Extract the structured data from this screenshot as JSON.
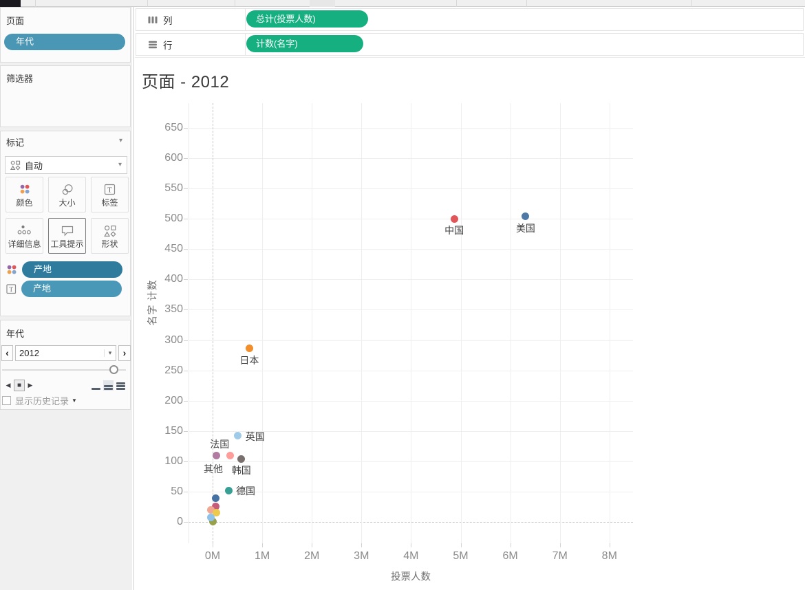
{
  "icons": {
    "caret_down": "▾",
    "history_caret": "▼",
    "prev": "‹",
    "next": "›",
    "back": "◀",
    "stop": "■",
    "play": "▶"
  },
  "colors": {
    "pill_page": "#4a96b5",
    "pill_marks_dark": "#2e7b9e",
    "pill_marks_light": "#4a98b8",
    "pill_measure_green": "#16b080",
    "icon_dots": [
      "#9467a8",
      "#e05759",
      "#eda04f",
      "#85a3cf"
    ]
  },
  "left_panel": {
    "pages_title": "页面",
    "pages_pill": "年代",
    "filters_title": "筛选器",
    "marks_title": "标记",
    "mark_type": "自动",
    "marks_buttons": [
      {
        "label": "颜色",
        "icon": "color-icon",
        "selected": false
      },
      {
        "label": "大小",
        "icon": "size-icon",
        "selected": false
      },
      {
        "label": "标签",
        "icon": "label-icon",
        "selected": false
      },
      {
        "label": "详细信息",
        "icon": "detail-icon",
        "selected": false
      },
      {
        "label": "工具提示",
        "icon": "tooltip-icon",
        "selected": true
      },
      {
        "label": "形状",
        "icon": "shape-icon",
        "selected": false
      }
    ],
    "marks_pills": [
      {
        "label": "产地",
        "icon": "color-icon"
      },
      {
        "label": "产地",
        "icon": "text-icon"
      }
    ],
    "page_control_title": "年代",
    "page_value": "2012",
    "history_label": "显示历史记录"
  },
  "shelves": {
    "columns_label": "列",
    "columns_pill": "总计(投票人数)",
    "rows_label": "行",
    "rows_pill": "计数(名字)"
  },
  "chart_data": {
    "type": "scatter",
    "title": "页面 - 2012",
    "xlabel": "投票人数",
    "ylabel": "名字 计数",
    "x_tick_labels": [
      "0M",
      "1M",
      "2M",
      "3M",
      "4M",
      "5M",
      "6M",
      "7M",
      "8M"
    ],
    "x_tick_values_m": [
      0,
      1,
      2,
      3,
      4,
      5,
      6,
      7,
      8
    ],
    "y_ticks": [
      0,
      50,
      100,
      150,
      200,
      250,
      300,
      350,
      400,
      450,
      500,
      550,
      600,
      650
    ],
    "xlim_m": [
      -0.5,
      8.5
    ],
    "ylim": [
      -35,
      690
    ],
    "grid": true,
    "points": [
      {
        "label": "中国",
        "x_m": 4.87,
        "y": 500,
        "color": "#e15759",
        "label_pos": "below"
      },
      {
        "label": "美国",
        "x_m": 6.31,
        "y": 504,
        "color": "#4e79a7",
        "label_pos": "below"
      },
      {
        "label": "日本",
        "x_m": 0.74,
        "y": 286,
        "color": "#f28e2b",
        "label_pos": "below"
      },
      {
        "label": "英国",
        "x_m": 0.51,
        "y": 142,
        "color": "#a0cbe8",
        "label_pos": "right"
      },
      {
        "label": "法国",
        "x_m": 0.35,
        "y": 109,
        "color": "#ff9d9a",
        "label_pos": "above-left"
      },
      {
        "label": "其他",
        "x_m": 0.07,
        "y": 109,
        "color": "#b07aa1",
        "label_pos": "below-left"
      },
      {
        "label": "韩国",
        "x_m": 0.58,
        "y": 104,
        "color": "#79706e",
        "label_pos": "below"
      },
      {
        "label": "德国",
        "x_m": 0.32,
        "y": 52,
        "color": "#379f94",
        "label_pos": "right"
      },
      {
        "label": "",
        "x_m": 0.06,
        "y": 39,
        "color": "#4672a3",
        "label_pos": "none"
      },
      {
        "label": "",
        "x_m": 0.06,
        "y": 26,
        "color": "#c75b7a",
        "label_pos": "none"
      },
      {
        "label": "",
        "x_m": -0.03,
        "y": 20,
        "color": "#f0a893",
        "label_pos": "none"
      },
      {
        "label": "",
        "x_m": 0.08,
        "y": 15,
        "color": "#edc94e",
        "label_pos": "none"
      },
      {
        "label": "",
        "x_m": 0.0,
        "y": 1,
        "color": "#97a14a",
        "label_pos": "none"
      },
      {
        "label": "",
        "x_m": -0.03,
        "y": 7,
        "color": "#8fc2e9",
        "label_pos": "none"
      }
    ]
  }
}
